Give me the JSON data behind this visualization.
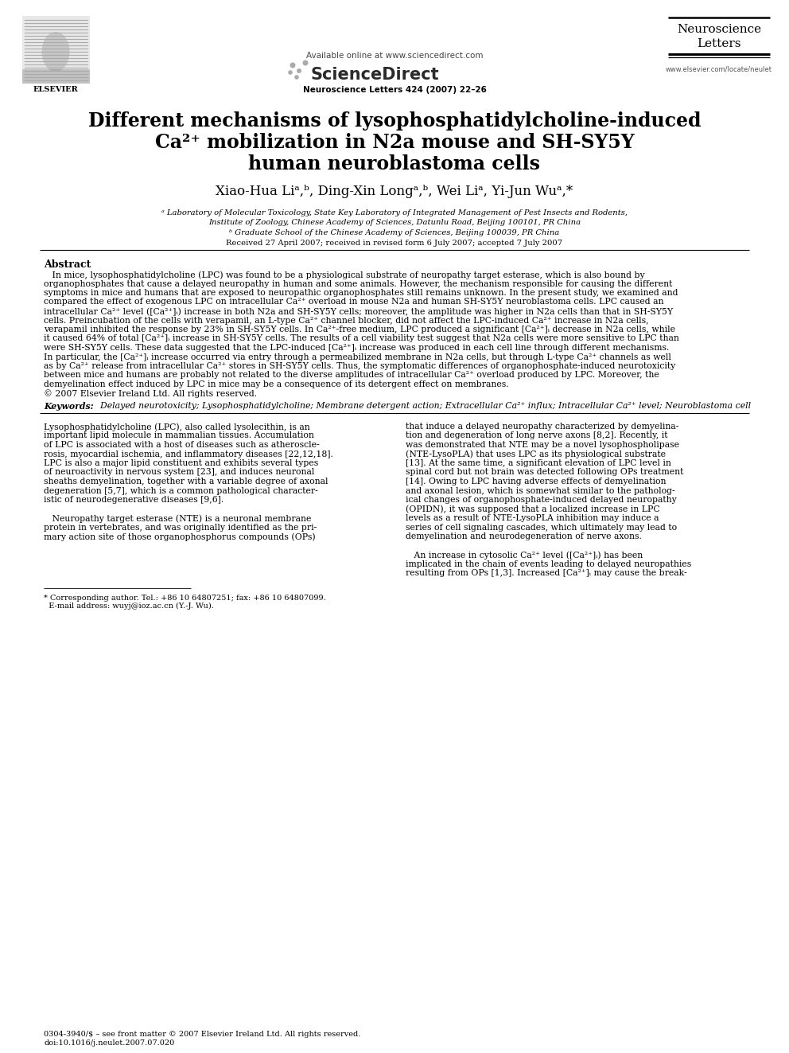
{
  "title_line1": "Different mechanisms of lysophosphatidylcholine-induced",
  "title_line2": "Ca²⁺ mobilization in N2a mouse and SH-SY5Y",
  "title_line3": "human neuroblastoma cells",
  "affil_a": "ᵃ Laboratory of Molecular Toxicology, State Key Laboratory of Integrated Management of Pest Insects and Rodents,",
  "affil_a2": "Institute of Zoology, Chinese Academy of Sciences, Datunlu Road, Beijing 100101, PR China",
  "affil_b": "ᵇ Graduate School of the Chinese Academy of Sciences, Beijing 100039, PR China",
  "received": "Received 27 April 2007; received in revised form 6 July 2007; accepted 7 July 2007",
  "journal_header": "Neuroscience Letters 424 (2007) 22–26",
  "available_online": "Available online at www.sciencedirect.com",
  "journal_name_line1": "Neuroscience",
  "journal_name_line2": "Letters",
  "website": "www.elsevier.com/locate/neulet",
  "abstract_title": "Abstract",
  "keywords_label": "Keywords:",
  "keywords_text": "  Delayed neurotoxicity; Lysophosphatidylcholine; Membrane detergent action; Extracellular Ca²⁺ influx; Intracellular Ca²⁺ level; Neuroblastoma cell",
  "bg_color": "#ffffff",
  "abstract_lines": [
    "   In mice, lysophosphatidylcholine (LPC) was found to be a physiological substrate of neuropathy target esterase, which is also bound by",
    "organophosphates that cause a delayed neuropathy in human and some animals. However, the mechanism responsible for causing the different",
    "symptoms in mice and humans that are exposed to neuropathic organophosphates still remains unknown. In the present study, we examined and",
    "compared the effect of exogenous LPC on intracellular Ca²⁺ overload in mouse N2a and human SH-SY5Y neuroblastoma cells. LPC caused an",
    "intracellular Ca²⁺ level ([Ca²⁺]ᵢ) increase in both N2a and SH-SY5Y cells; moreover, the amplitude was higher in N2a cells than that in SH-SY5Y",
    "cells. Preincubation of the cells with verapamil, an L-type Ca²⁺ channel blocker, did not affect the LPC-induced Ca²⁺ increase in N2a cells,",
    "verapamil inhibited the response by 23% in SH-SY5Y cells. In Ca²⁺-free medium, LPC produced a significant [Ca²⁺]ᵢ decrease in N2a cells, while",
    "it caused 64% of total [Ca²⁺]ᵢ increase in SH-SY5Y cells. The results of a cell viability test suggest that N2a cells were more sensitive to LPC than",
    "were SH-SY5Y cells. These data suggested that the LPC-induced [Ca²⁺]ᵢ increase was produced in each cell line through different mechanisms.",
    "In particular, the [Ca²⁺]ᵢ increase occurred via entry through a permeabilized membrane in N2a cells, but through L-type Ca²⁺ channels as well",
    "as by Ca²⁺ release from intracellular Ca²⁺ stores in SH-SY5Y cells. Thus, the symptomatic differences of organophosphate-induced neurotoxicity",
    "between mice and humans are probably not related to the diverse amplitudes of intracellular Ca²⁺ overload produced by LPC. Moreover, the",
    "demyelination effect induced by LPC in mice may be a consequence of its detergent effect on membranes.",
    "© 2007 Elsevier Ireland Ltd. All rights reserved."
  ],
  "col1_lines": [
    "Lysophosphatidylcholine (LPC), also called lysolecithin, is an",
    "important lipid molecule in mammalian tissues. Accumulation",
    "of LPC is associated with a host of diseases such as atheroscle-",
    "rosis, myocardial ischemia, and inflammatory diseases [22,12,18].",
    "LPC is also a major lipid constituent and exhibits several types",
    "of neuroactivity in nervous system [23], and induces neuronal",
    "sheaths demyelination, together with a variable degree of axonal",
    "degeneration [5,7], which is a common pathological character-",
    "istic of neurodegenerative diseases [9,6].",
    "",
    "   Neuropathy target esterase (NTE) is a neuronal membrane",
    "protein in vertebrates, and was originally identified as the pri-",
    "mary action site of those organophosphorus compounds (OPs)"
  ],
  "col2_lines": [
    "that induce a delayed neuropathy characterized by demyelina-",
    "tion and degeneration of long nerve axons [8,2]. Recently, it",
    "was demonstrated that NTE may be a novel lysophospholipase",
    "(NTE-LysoPLA) that uses LPC as its physiological substrate",
    "[13]. At the same time, a significant elevation of LPC level in",
    "spinal cord but not brain was detected following OPs treatment",
    "[14]. Owing to LPC having adverse effects of demyelination",
    "and axonal lesion, which is somewhat similar to the patholog-",
    "ical changes of organophosphate-induced delayed neuropathy",
    "(OPIDN), it was supposed that a localized increase in LPC",
    "levels as a result of NTE-LysoPLA inhibition may induce a",
    "series of cell signaling cascades, which ultimately may lead to",
    "demyelination and neurodegeneration of nerve axons.",
    "",
    "   An increase in cytosolic Ca²⁺ level ([Ca²⁺]ᵢ) has been",
    "implicated in the chain of events leading to delayed neuropathies",
    "resulting from OPs [1,3]. Increased [Ca²⁺]ᵢ may cause the break-"
  ],
  "footnote_line1": "* Corresponding author. Tel.: +86 10 64807251; fax: +86 10 64807099.",
  "footnote_line2": "  E-mail address: wuyj@ioz.ac.cn (Y.-J. Wu).",
  "footer_line1": "0304-3940/$ – see front matter © 2007 Elsevier Ireland Ltd. All rights reserved.",
  "footer_line2": "doi:10.1016/j.neulet.2007.07.020"
}
